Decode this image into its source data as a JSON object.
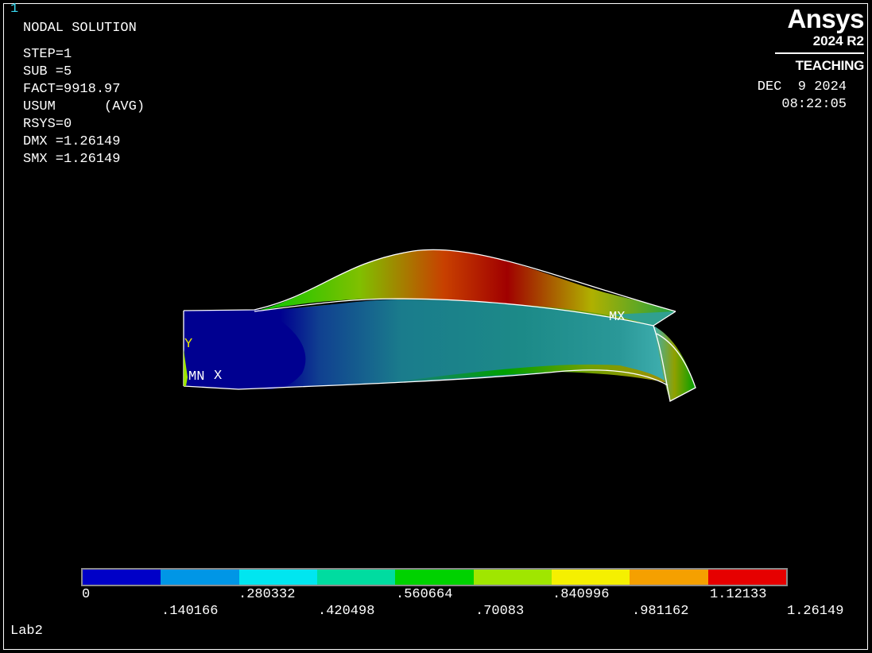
{
  "window": {
    "number": "1"
  },
  "solution_info": {
    "title": "NODAL SOLUTION",
    "lines": [
      "STEP=1",
      "SUB =5",
      "FACT=9918.97",
      "USUM      (AVG)",
      "RSYS=0",
      "DMX =1.26149",
      "SMX =1.26149"
    ]
  },
  "branding": {
    "name": "Ansys",
    "version": "2024 R2",
    "edition": "TEACHING"
  },
  "datetime": {
    "date": "DEC  9 2024",
    "time": "08:22:05"
  },
  "plot": {
    "max_label": "MX",
    "min_label": "MN",
    "triad": {
      "x": "X",
      "y": "Y"
    }
  },
  "legend": {
    "colors": [
      "#0000c8",
      "#0096e6",
      "#00e6f0",
      "#00dca0",
      "#00d200",
      "#a0e600",
      "#f5f000",
      "#f5a000",
      "#e60000"
    ],
    "ticks_upper": [
      "0",
      ".280332",
      ".560664",
      ".840996",
      "1.12133"
    ],
    "ticks_lower": [
      ".140166",
      ".420498",
      ".70083",
      ".981162",
      "1.26149"
    ]
  },
  "footer": {
    "label": "Lab2"
  }
}
